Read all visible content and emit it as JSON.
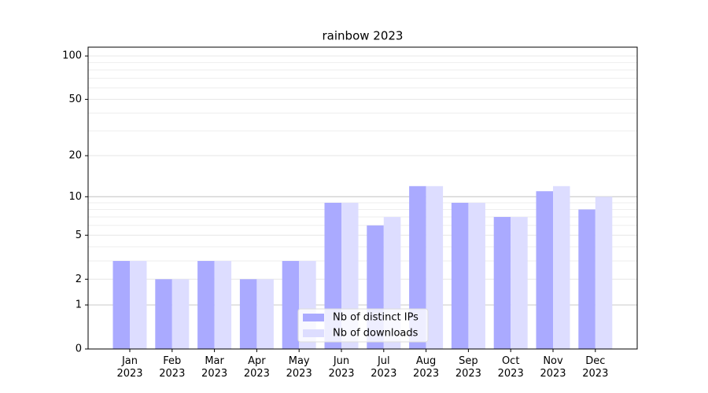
{
  "chart_data": {
    "type": "bar",
    "title": "rainbow 2023",
    "scale": "log1p",
    "categories": [
      "Jan\n2023",
      "Feb\n2023",
      "Mar\n2023",
      "Apr\n2023",
      "May\n2023",
      "Jun\n2023",
      "Jul\n2023",
      "Aug\n2023",
      "Sep\n2023",
      "Oct\n2023",
      "Nov\n2023",
      "Dec\n2023"
    ],
    "series": [
      {
        "name": "Nb of distinct IPs",
        "color": "#aaaaff",
        "values": [
          3,
          2,
          3,
          2,
          3,
          9,
          6,
          12,
          9,
          7,
          11,
          8
        ]
      },
      {
        "name": "Nb of downloads",
        "color": "#ddddff",
        "values": [
          3,
          2,
          3,
          2,
          3,
          9,
          7,
          12,
          9,
          7,
          12,
          10
        ]
      }
    ],
    "ylim": [
      0,
      115
    ],
    "yticks": [
      0,
      1,
      2,
      5,
      10,
      20,
      50,
      100
    ],
    "minor_grid": [
      3,
      4,
      6,
      7,
      8,
      9,
      30,
      40,
      60,
      70,
      80,
      90
    ],
    "strong_grid": [
      1,
      10
    ],
    "grid": true,
    "legend": "lower center"
  }
}
